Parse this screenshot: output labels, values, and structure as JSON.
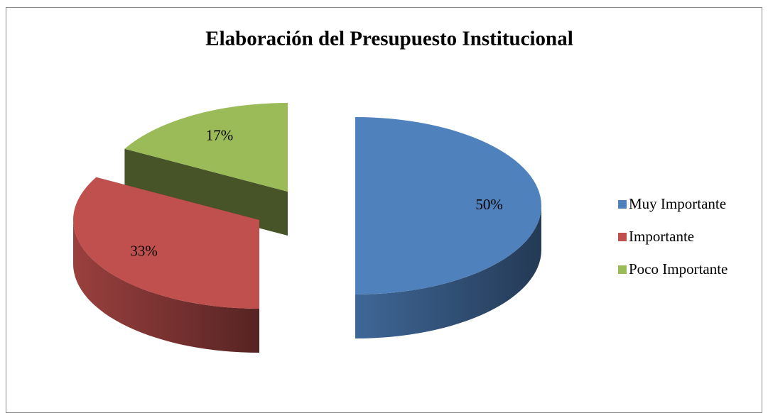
{
  "chart_data": {
    "type": "pie",
    "title": "Elaboración del Presupuesto Institucional",
    "categories": [
      "Muy Importante",
      "Importante",
      "Poco Importante"
    ],
    "values": [
      50,
      33,
      17
    ],
    "value_labels": [
      "50%",
      "33%",
      "17%"
    ],
    "colors": [
      "#4f81bd",
      "#c0504d",
      "#9bbb59"
    ],
    "legend": "right"
  }
}
